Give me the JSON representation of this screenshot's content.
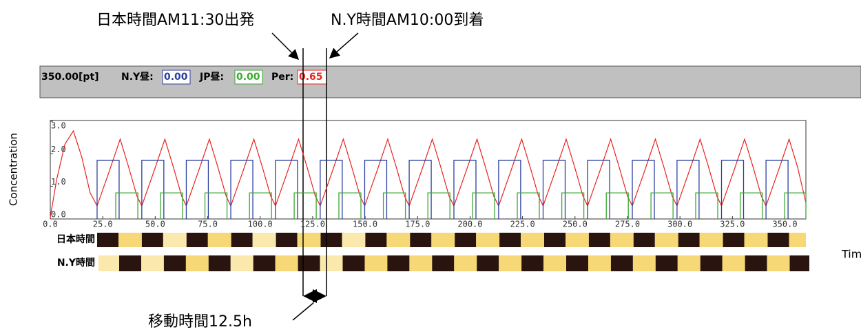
{
  "chart_data": {
    "type": "line",
    "annotations": {
      "departure": "日本時間AM11:30出発",
      "arrival": "N.Y時間AM10:00到着",
      "travel": "移動時間12.5h"
    },
    "panel": {
      "points": "350.00[pt]",
      "ny_label": "N.Y昼:",
      "ny_value": "0.00",
      "jp_label": "JP昼:",
      "jp_value": "0.00",
      "per_label": "Per:",
      "per_value": "0.65"
    },
    "y_label": "Concentration",
    "x_label": "Time",
    "row_labels": [
      "日本時間",
      "N.Y時間"
    ],
    "xlim": [
      0,
      360
    ],
    "ylim": [
      0,
      3
    ],
    "xticks": [
      {
        "value": 0,
        "label": "0.0"
      },
      {
        "value": 25,
        "label": "25.0"
      },
      {
        "value": 50,
        "label": "50.0"
      },
      {
        "value": 75,
        "label": "75.0"
      },
      {
        "value": 100,
        "label": "100.0"
      },
      {
        "value": 125,
        "label": "125.0"
      },
      {
        "value": 150,
        "label": "150.0"
      },
      {
        "value": 175,
        "label": "175.0"
      },
      {
        "value": 200,
        "label": "200.0"
      },
      {
        "value": 225,
        "label": "225.0"
      },
      {
        "value": 250,
        "label": "250.0"
      },
      {
        "value": 275,
        "label": "275.0"
      },
      {
        "value": 300,
        "label": "300.0"
      },
      {
        "value": 325,
        "label": "325.0"
      },
      {
        "value": 350,
        "label": "350.0"
      }
    ],
    "yticks": [
      {
        "value": 0,
        "label": "0.0"
      },
      {
        "value": 1,
        "label": "1.0"
      },
      {
        "value": 2,
        "label": "2.0"
      },
      {
        "value": 3,
        "label": "3.0"
      }
    ],
    "series": [
      {
        "color": "#e8231e",
        "x": [
          0,
          3,
          7,
          11,
          15,
          19,
          22.3,
          28.3,
          33.3,
          37.3,
          41.3,
          43.6,
          49.6,
          54.6,
          58.6,
          62.6,
          64.8,
          70.8,
          75.8,
          79.8,
          83.8,
          86.0,
          92.0,
          97.0,
          101.0,
          105.0,
          107.3,
          113.3,
          118.3,
          122.3,
          126.3,
          128.6,
          134.6,
          139.6,
          143.6,
          147.6,
          149.8,
          155.8,
          160.8,
          164.8,
          168.8,
          171,
          177,
          182,
          186,
          190,
          192.3,
          198.3,
          203.3,
          207.3,
          211.3,
          213.6,
          219.6,
          224.6,
          228.6,
          232.6,
          234.8,
          240.8,
          245.8,
          249.8,
          253.8,
          256,
          262,
          267,
          271,
          275,
          277.3,
          283.3,
          288.3,
          292.3,
          296.3,
          298.6,
          304.6,
          309.6,
          313.6,
          317.6,
          319.8,
          325.8,
          330.8,
          334.8,
          338.8,
          341,
          347,
          352,
          356,
          360
        ],
        "values": [
          0.05,
          1.2,
          2.3,
          2.7,
          1.9,
          0.8,
          0.4,
          1.5,
          2.45,
          1.6,
          0.7,
          0.4,
          1.5,
          2.45,
          1.6,
          0.7,
          0.4,
          1.5,
          2.45,
          1.6,
          0.7,
          0.4,
          1.5,
          2.45,
          1.6,
          0.7,
          0.4,
          1.5,
          2.45,
          1.6,
          0.7,
          0.4,
          1.5,
          2.45,
          1.6,
          0.7,
          0.4,
          1.5,
          2.45,
          1.6,
          0.7,
          0.4,
          1.5,
          2.45,
          1.6,
          0.7,
          0.4,
          1.5,
          2.45,
          1.6,
          0.7,
          0.4,
          1.5,
          2.45,
          1.6,
          0.7,
          0.4,
          1.5,
          2.45,
          1.6,
          0.7,
          0.4,
          1.5,
          2.45,
          1.6,
          0.7,
          0.4,
          1.5,
          2.45,
          1.6,
          0.7,
          0.4,
          1.5,
          2.45,
          1.6,
          0.7,
          0.4,
          1.5,
          2.45,
          1.6,
          0.7,
          0.4,
          1.5,
          2.45,
          1.6,
          0.5
        ]
      },
      {
        "color": "#2b3f9e",
        "level": 1.8,
        "starts": [
          22.3,
          43.6,
          64.8,
          86.0,
          107.3,
          128.6,
          149.8,
          171.0,
          192.3,
          213.6,
          234.8,
          256.0,
          277.3,
          298.6,
          319.8,
          341.0
        ],
        "ends": [
          32.8,
          54.1,
          75.3,
          96.5,
          117.8,
          139.1,
          160.3,
          181.5,
          202.8,
          224.1,
          245.3,
          266.5,
          287.8,
          309.1,
          330.3,
          351.5
        ]
      },
      {
        "color": "#3aa832",
        "level": 0.8,
        "starts": [
          31.2,
          52.5,
          73.7,
          94.9,
          116.2,
          137.5,
          158.7,
          179.9,
          201.2,
          222.5,
          243.7,
          264.9,
          286.2,
          307.5,
          328.7,
          349.9
        ],
        "ends": [
          41.7,
          63.0,
          84.2,
          105.4,
          126.7,
          148.0,
          169.2,
          190.4,
          211.7,
          233.0,
          254.2,
          275.4,
          296.7,
          318.0,
          339.2,
          360.0
        ]
      }
    ]
  }
}
